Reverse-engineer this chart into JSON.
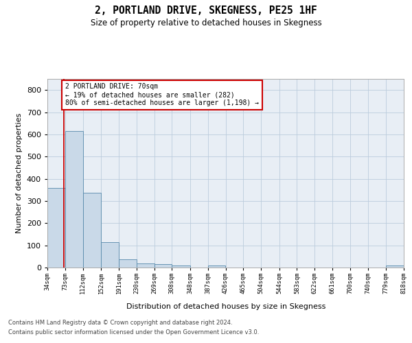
{
  "title": "2, PORTLAND DRIVE, SKEGNESS, PE25 1HF",
  "subtitle": "Size of property relative to detached houses in Skegness",
  "xlabel": "Distribution of detached houses by size in Skegness",
  "ylabel": "Number of detached properties",
  "footer_line1": "Contains HM Land Registry data © Crown copyright and database right 2024.",
  "footer_line2": "Contains public sector information licensed under the Open Government Licence v3.0.",
  "bin_edges": [
    34,
    73,
    112,
    152,
    191,
    230,
    269,
    308,
    348,
    387,
    426,
    465,
    504,
    544,
    583,
    622,
    661,
    700,
    740,
    779,
    818
  ],
  "bar_heights": [
    360,
    614,
    338,
    115,
    36,
    20,
    15,
    10,
    0,
    9,
    0,
    0,
    0,
    0,
    0,
    0,
    0,
    0,
    0,
    9
  ],
  "bar_color": "#c9d9e8",
  "bar_edge_color": "#5588aa",
  "grid_color": "#bbccdd",
  "bg_color": "#e8eef5",
  "property_size": 70,
  "property_line_color": "#cc0000",
  "annotation_text": "2 PORTLAND DRIVE: 70sqm\n← 19% of detached houses are smaller (282)\n80% of semi-detached houses are larger (1,198) →",
  "annotation_box_color": "#cc0000",
  "ylim": [
    0,
    850
  ],
  "yticks": [
    0,
    100,
    200,
    300,
    400,
    500,
    600,
    700,
    800
  ]
}
